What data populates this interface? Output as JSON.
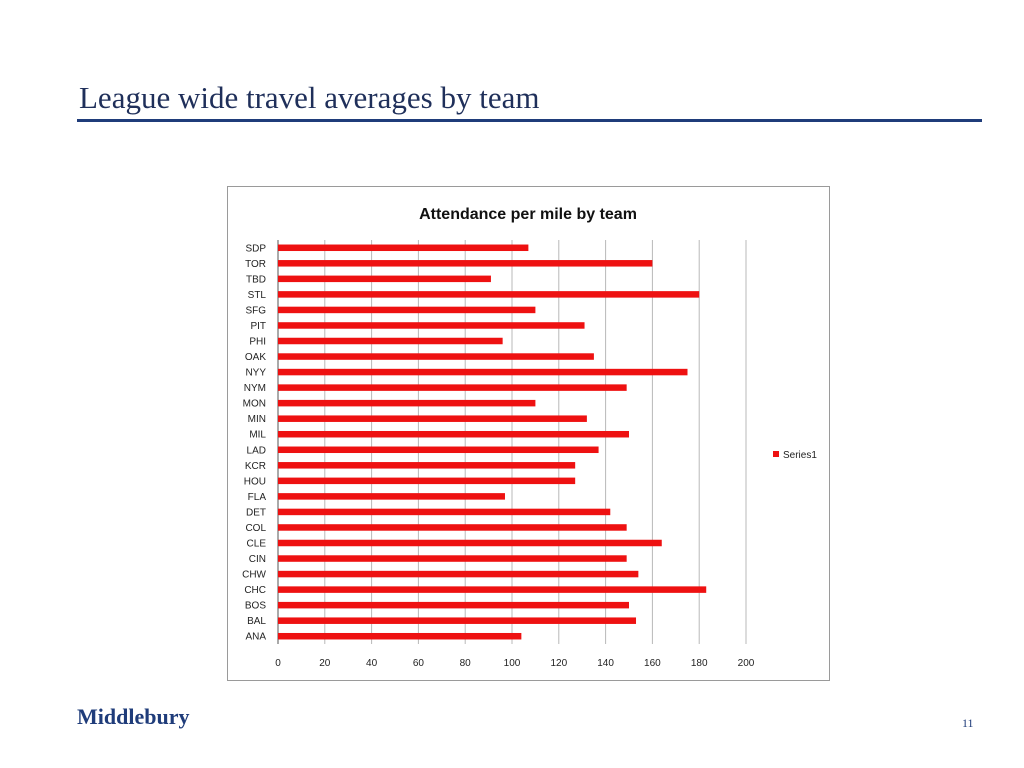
{
  "slide": {
    "title": "League wide travel averages by team",
    "logo_text": "Middlebury",
    "page_number": "11"
  },
  "colors": {
    "bar": "#ee1111",
    "title_rule": "#1f3c7a",
    "grid": "#b8b8b8"
  },
  "chart_data": {
    "type": "bar",
    "orientation": "horizontal",
    "title": "Attendance per mile by team",
    "xlim": [
      0,
      200
    ],
    "x_ticks": [
      0,
      20,
      40,
      60,
      80,
      100,
      120,
      140,
      160,
      180,
      200
    ],
    "grid": true,
    "legend_position": "right",
    "categories": [
      "SDP",
      "TOR",
      "TBD",
      "STL",
      "SFG",
      "PIT",
      "PHI",
      "OAK",
      "NYY",
      "NYM",
      "MON",
      "MIN",
      "MIL",
      "LAD",
      "KCR",
      "HOU",
      "FLA",
      "DET",
      "COL",
      "CLE",
      "CIN",
      "CHW",
      "CHC",
      "BOS",
      "BAL",
      "ANA"
    ],
    "series": [
      {
        "name": "Series1",
        "values": [
          107,
          160,
          91,
          180,
          110,
          131,
          96,
          135,
          175,
          149,
          110,
          132,
          150,
          137,
          127,
          127,
          97,
          142,
          149,
          164,
          149,
          154,
          183,
          150,
          153,
          104
        ]
      }
    ]
  }
}
